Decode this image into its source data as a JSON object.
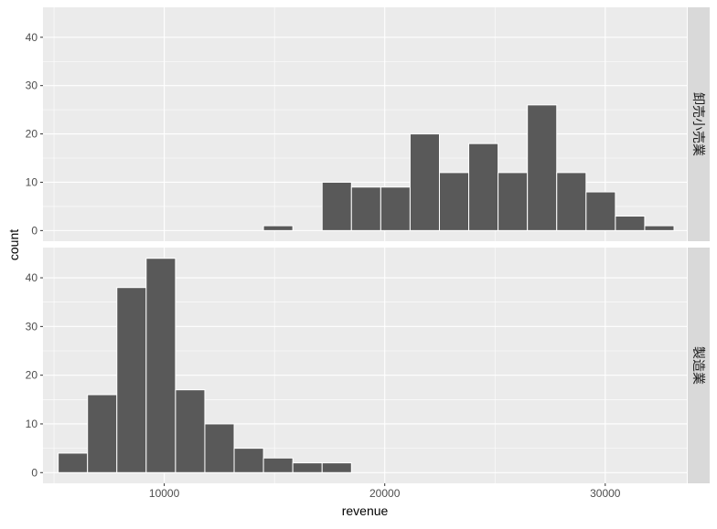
{
  "chart_data": {
    "type": "bar",
    "subtype": "faceted-histogram",
    "xlabel": "revenue",
    "ylabel": "count",
    "xlim": [
      4500,
      33700
    ],
    "ylim": [
      -2.2,
      46.2
    ],
    "x_ticks": [
      10000,
      20000,
      30000
    ],
    "x_tick_labels": [
      "10000",
      "20000",
      "30000"
    ],
    "y_ticks": [
      0,
      10,
      20,
      30,
      40
    ],
    "y_tick_labels": [
      "0",
      "10",
      "20",
      "30",
      "40"
    ],
    "grid": true,
    "bin_width": 1330,
    "facets": [
      {
        "label": "卸売小売業",
        "bins": [
          {
            "x0": 14500,
            "x1": 15830,
            "count": 1
          },
          {
            "x0": 15830,
            "x1": 17160,
            "count": 0
          },
          {
            "x0": 17160,
            "x1": 18490,
            "count": 10
          },
          {
            "x0": 18490,
            "x1": 19820,
            "count": 9
          },
          {
            "x0": 19820,
            "x1": 21150,
            "count": 9
          },
          {
            "x0": 21150,
            "x1": 22480,
            "count": 20
          },
          {
            "x0": 22480,
            "x1": 23810,
            "count": 12
          },
          {
            "x0": 23810,
            "x1": 25140,
            "count": 18
          },
          {
            "x0": 25140,
            "x1": 26470,
            "count": 12
          },
          {
            "x0": 26470,
            "x1": 27800,
            "count": 26
          },
          {
            "x0": 27800,
            "x1": 29130,
            "count": 12
          },
          {
            "x0": 29130,
            "x1": 30460,
            "count": 8
          },
          {
            "x0": 30460,
            "x1": 31790,
            "count": 3
          },
          {
            "x0": 31790,
            "x1": 33120,
            "count": 1
          }
        ]
      },
      {
        "label": "製造業",
        "bins": [
          {
            "x0": 5190,
            "x1": 6520,
            "count": 4
          },
          {
            "x0": 6520,
            "x1": 7850,
            "count": 16
          },
          {
            "x0": 7850,
            "x1": 9180,
            "count": 38
          },
          {
            "x0": 9180,
            "x1": 10510,
            "count": 44
          },
          {
            "x0": 10510,
            "x1": 11840,
            "count": 17
          },
          {
            "x0": 11840,
            "x1": 13170,
            "count": 10
          },
          {
            "x0": 13170,
            "x1": 14500,
            "count": 5
          },
          {
            "x0": 14500,
            "x1": 15830,
            "count": 3
          },
          {
            "x0": 15830,
            "x1": 17160,
            "count": 2
          },
          {
            "x0": 17160,
            "x1": 18490,
            "count": 2
          }
        ]
      }
    ]
  },
  "colors": {
    "panel_background": "#ebebeb",
    "grid_major": "#ffffff",
    "bar_fill": "#595959",
    "bar_outline": "#ffffff",
    "strip_background": "#d9d9d9"
  }
}
